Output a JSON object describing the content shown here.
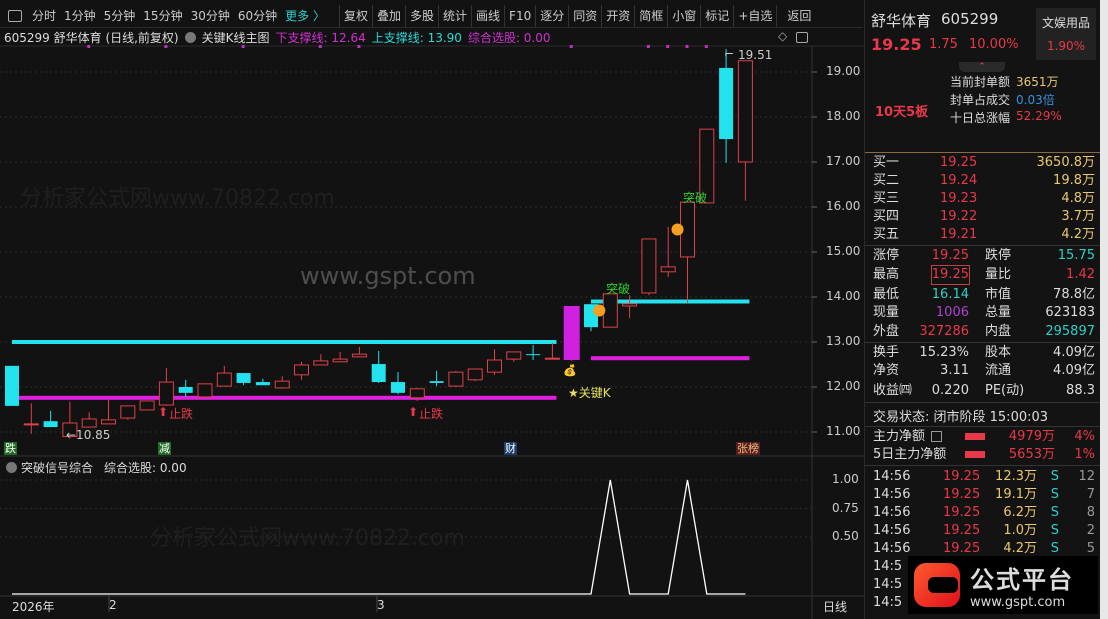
{
  "toolbar": {
    "periods": [
      "分时",
      "1分钟",
      "5分钟",
      "15分钟",
      "30分钟",
      "60分钟"
    ],
    "more": "更多 〉",
    "buttons": [
      "复权",
      "叠加",
      "多股",
      "统计",
      "画线",
      "F10",
      "逐分",
      "同资",
      "开资",
      "简框",
      "小窗",
      "标记",
      "+自选",
      "返回"
    ]
  },
  "chart_header": {
    "title": "605299 舒华体育 (日线,前复权)",
    "indicator": "关键K线主图",
    "lower_support_label": "下支撑线: 12.64",
    "upper_support_label": "上支撑线: 13.90",
    "composite_label": "综合选股: 0.00"
  },
  "annotations": {
    "low_label": "←10.85",
    "high_label": "19.51",
    "stop_fall": "止跌",
    "breakout": "突破",
    "key_k": "★关键K",
    "markers": [
      "跌",
      "减",
      "财",
      "张榜"
    ]
  },
  "lower_panel": {
    "title": "突破信号综合",
    "value_label": "综合选股: 0.00"
  },
  "x_axis": {
    "labels": [
      "2026年",
      "2",
      "3"
    ],
    "period": "日线"
  },
  "colors": {
    "up": "#e0404a",
    "down": "#22e2ee",
    "upper_support": "#22e2ee",
    "lower_support": "#e020e0",
    "key_k": "#d020e0",
    "signal": "#ffffff",
    "background": "#121212"
  },
  "watermark": "分析家公式网www.70822.com",
  "watermark2": "www.gspt.com",
  "chart_data": [
    {
      "type": "candlestick",
      "y_ticks": [
        "19.00",
        "18.00",
        "17.00",
        "16.00",
        "15.00",
        "14.00",
        "13.00",
        "12.00",
        "11.00"
      ],
      "ylim": [
        10.7,
        19.6
      ],
      "ohlc_order": [
        "open",
        "high",
        "low",
        "close"
      ],
      "candles": [
        [
          12.47,
          12.47,
          11.58,
          11.58
        ],
        [
          11.18,
          11.64,
          10.96,
          11.18
        ],
        [
          11.24,
          11.47,
          11.11,
          11.11
        ],
        [
          10.9,
          11.67,
          10.85,
          11.2
        ],
        [
          11.11,
          11.44,
          11.1,
          11.29
        ],
        [
          11.18,
          11.71,
          11.18,
          11.27
        ],
        [
          11.31,
          11.58,
          11.27,
          11.58
        ],
        [
          11.49,
          11.69,
          11.49,
          11.69
        ],
        [
          11.6,
          12.42,
          11.58,
          12.11
        ],
        [
          12.0,
          12.16,
          11.78,
          11.87
        ],
        [
          11.78,
          12.07,
          11.78,
          12.07
        ],
        [
          12.02,
          12.47,
          12.02,
          12.31
        ],
        [
          12.31,
          12.31,
          12.04,
          12.09
        ],
        [
          12.11,
          12.18,
          12.04,
          12.04
        ],
        [
          11.98,
          12.24,
          11.96,
          12.13
        ],
        [
          12.27,
          12.56,
          12.16,
          12.49
        ],
        [
          12.49,
          12.73,
          12.49,
          12.58
        ],
        [
          12.56,
          12.78,
          12.56,
          12.62
        ],
        [
          12.67,
          12.89,
          12.67,
          12.73
        ],
        [
          12.51,
          12.8,
          12.09,
          12.11
        ],
        [
          12.11,
          12.33,
          11.84,
          11.87
        ],
        [
          11.76,
          11.98,
          11.69,
          11.96
        ],
        [
          12.13,
          12.36,
          12.02,
          12.09
        ],
        [
          12.02,
          12.36,
          12.0,
          12.33
        ],
        [
          12.16,
          12.4,
          12.13,
          12.4
        ],
        [
          12.33,
          12.84,
          12.27,
          12.6
        ],
        [
          12.62,
          12.78,
          12.56,
          12.78
        ],
        [
          12.73,
          12.93,
          12.6,
          12.71
        ],
        [
          12.64,
          12.98,
          12.64,
          12.64
        ],
        [
          12.6,
          13.8,
          12.58,
          13.8
        ],
        [
          13.84,
          13.84,
          13.24,
          13.33
        ],
        [
          13.33,
          14.07,
          13.33,
          14.07
        ],
        [
          13.8,
          14.04,
          13.53,
          13.85
        ],
        [
          14.09,
          15.29,
          14.04,
          15.29
        ],
        [
          14.56,
          15.56,
          14.44,
          14.67
        ],
        [
          14.89,
          16.11,
          13.87,
          16.11
        ],
        [
          16.09,
          17.73,
          16.09,
          17.73
        ],
        [
          19.09,
          19.51,
          16.98,
          17.51
        ],
        [
          17.0,
          19.25,
          16.14,
          19.25
        ]
      ],
      "key_k_index": 29,
      "support_lines": [
        {
          "name": "上支撑线",
          "value": 13.0,
          "from": 0,
          "to": 28
        },
        {
          "name": "下支撑线",
          "value": 11.76,
          "from": 0,
          "to": 28
        },
        {
          "name": "上支撑线",
          "value": 13.9,
          "from": 30,
          "to": 38
        },
        {
          "name": "下支撑线",
          "value": 12.64,
          "from": 30,
          "to": 38
        }
      ],
      "stop_fall_indices": [
        8,
        21
      ],
      "breakout_indices": [
        31,
        35
      ],
      "top_dots_indices": [
        4,
        8,
        12,
        16,
        18,
        29,
        33,
        34,
        35,
        36
      ]
    },
    {
      "type": "line",
      "title": "突破信号综合",
      "y_ticks": [
        "1.00",
        "0.75",
        "0.50"
      ],
      "ylim": [
        0,
        1
      ],
      "values": [
        0,
        0,
        0,
        0,
        0,
        0,
        0,
        0,
        0,
        0,
        0,
        0,
        0,
        0,
        0,
        0,
        0,
        0,
        0,
        0,
        0,
        0,
        0,
        0,
        0,
        0,
        0,
        0,
        0,
        0,
        0,
        1,
        0,
        0,
        0,
        1,
        0,
        0,
        0
      ]
    }
  ],
  "quote": {
    "name": "舒华体育",
    "code": "605299",
    "sector": "文娱用品",
    "sector_pct": "1.90%",
    "price": "19.25",
    "change": "1.75",
    "pct": "10.00%",
    "seal_amount_label": "当前封单额",
    "seal_amount": "3651万",
    "seal_ratio_label": "封单占成交",
    "seal_ratio": "0.03倍",
    "ten_day_label": "十日总涨幅",
    "ten_day": "52.29%",
    "streak": "10天5板"
  },
  "order_book": [
    {
      "label": "买一",
      "price": "19.25",
      "vol": "3650.8万"
    },
    {
      "label": "买二",
      "price": "19.24",
      "vol": "19.8万"
    },
    {
      "label": "买三",
      "price": "19.23",
      "vol": "4.8万"
    },
    {
      "label": "买四",
      "price": "19.22",
      "vol": "3.7万"
    },
    {
      "label": "买五",
      "price": "19.21",
      "vol": "4.2万"
    }
  ],
  "stats": [
    {
      "l1": "涨停",
      "v1": "19.25",
      "l2": "跌停",
      "v2": "15.75"
    },
    {
      "l1": "最高",
      "v1": "19.25",
      "l2": "量比",
      "v2": "1.42"
    },
    {
      "l1": "最低",
      "v1": "16.14",
      "l2": "市值",
      "v2": "78.8亿"
    },
    {
      "l1": "现量",
      "v1": "1006",
      "l2": "总量",
      "v2": "623183"
    },
    {
      "l1": "外盘",
      "v1": "327286",
      "l2": "内盘",
      "v2": "295897"
    },
    {
      "l1": "换手",
      "v1": "15.23%",
      "l2": "股本",
      "v2": "4.09亿"
    },
    {
      "l1": "净资",
      "v1": "3.11",
      "l2": "流通",
      "v2": "4.09亿"
    },
    {
      "l1": "收益㈣",
      "v1": "0.220",
      "l2": "PE(动)",
      "v2": "88.3"
    }
  ],
  "trade_status": "交易状态: 闭市阶段 15:00:03",
  "fund_flow": [
    {
      "label": "主力净额",
      "amount": "4979万",
      "pct": "4%"
    },
    {
      "label": "5日主力净额",
      "amount": "5653万",
      "pct": "1%"
    }
  ],
  "ticks": [
    {
      "time": "14:56",
      "price": "19.25",
      "vol": "12.3万",
      "side": "S",
      "count": "12"
    },
    {
      "time": "14:56",
      "price": "19.25",
      "vol": "19.1万",
      "side": "S",
      "count": "7"
    },
    {
      "time": "14:56",
      "price": "19.25",
      "vol": "6.2万",
      "side": "S",
      "count": "8"
    },
    {
      "time": "14:56",
      "price": "19.25",
      "vol": "1.0万",
      "side": "S",
      "count": "2"
    },
    {
      "time": "14:56",
      "price": "19.25",
      "vol": "4.2万",
      "side": "S",
      "count": "5"
    },
    {
      "time": "14:5"
    },
    {
      "time": "14:5"
    },
    {
      "time": "14:5"
    }
  ],
  "logo": {
    "text": "公式平台",
    "url": "www.gspt.com"
  }
}
